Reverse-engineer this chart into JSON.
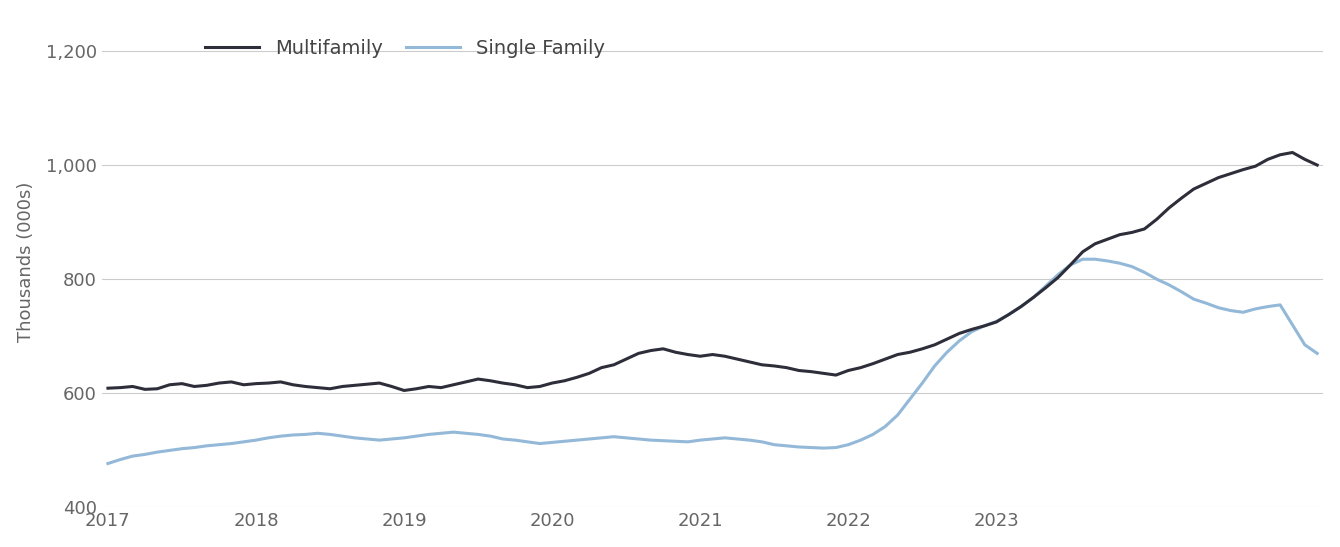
{
  "ylabel": "Thousands (000s)",
  "multifamily_color": "#2e2e3a",
  "singlefamily_color": "#93b8d8",
  "multifamily_label": "Multifamily",
  "singlefamily_label": "Single Family",
  "line_width": 2.2,
  "ylim": [
    400,
    1260
  ],
  "yticks": [
    400,
    600,
    800,
    1000,
    1200
  ],
  "ytick_labels": [
    "400",
    "600",
    "800",
    "1,000",
    "1,200"
  ],
  "background_color": "#ffffff",
  "grid_color": "#cccccc",
  "multifamily": [
    609,
    610,
    612,
    607,
    608,
    615,
    617,
    612,
    614,
    618,
    620,
    615,
    617,
    618,
    620,
    615,
    612,
    610,
    608,
    612,
    614,
    616,
    618,
    612,
    605,
    608,
    612,
    610,
    615,
    620,
    625,
    622,
    618,
    615,
    610,
    612,
    618,
    622,
    628,
    635,
    645,
    650,
    660,
    670,
    675,
    678,
    672,
    668,
    665,
    668,
    665,
    660,
    655,
    650,
    648,
    645,
    640,
    638,
    635,
    632,
    640,
    645,
    652,
    660,
    668,
    672,
    678,
    685,
    695,
    705,
    712,
    718,
    725,
    738,
    752,
    768,
    785,
    803,
    825,
    848,
    862,
    870,
    878,
    882,
    888,
    905,
    925,
    942,
    958,
    968,
    978,
    985,
    992,
    998,
    1010,
    1018,
    1022,
    1010,
    1000
  ],
  "singlefamily": [
    477,
    484,
    490,
    493,
    497,
    500,
    503,
    505,
    508,
    510,
    512,
    515,
    518,
    522,
    525,
    527,
    528,
    530,
    528,
    525,
    522,
    520,
    518,
    520,
    522,
    525,
    528,
    530,
    532,
    530,
    528,
    525,
    520,
    518,
    515,
    512,
    514,
    516,
    518,
    520,
    522,
    524,
    522,
    520,
    518,
    517,
    516,
    515,
    518,
    520,
    522,
    520,
    518,
    515,
    510,
    508,
    506,
    505,
    504,
    505,
    510,
    518,
    528,
    542,
    562,
    590,
    618,
    648,
    672,
    692,
    708,
    718,
    726,
    738,
    752,
    768,
    788,
    808,
    825,
    835,
    835,
    832,
    828,
    822,
    812,
    800,
    790,
    778,
    765,
    758,
    750,
    745,
    742,
    748,
    752,
    755,
    720,
    685,
    670
  ],
  "n_points": 99,
  "xtick_positions": [
    0,
    12,
    24,
    36,
    48,
    60,
    72
  ],
  "xtick_labels": [
    "2017",
    "2018",
    "2019",
    "2020",
    "2021",
    "2022",
    "2023"
  ]
}
